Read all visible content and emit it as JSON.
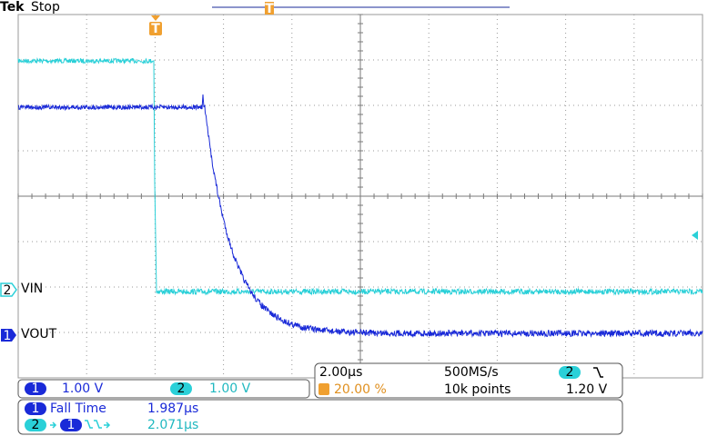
{
  "header": {
    "brand": "Tek",
    "status": "Stop"
  },
  "markers": {
    "trigger": "T",
    "ch2": "2",
    "ch2_label": "VIN",
    "ch1": "1",
    "ch1_label": "VOUT"
  },
  "channels": [
    {
      "number": "1",
      "scale": "1.00 V"
    },
    {
      "number": "2",
      "scale": "1.00 V"
    }
  ],
  "timebase": {
    "scale": "2.00µs",
    "sample_rate": "500MS/s",
    "trigger_source": "2",
    "trigger_position": "20.00 %",
    "record_length": "10k points",
    "trigger_level": "1.20 V"
  },
  "measurements": [
    {
      "source": "1",
      "name": "Fall Time",
      "value": "1.987µs"
    },
    {
      "source": "2",
      "target": "1",
      "value": "2.071µs"
    }
  ]
}
